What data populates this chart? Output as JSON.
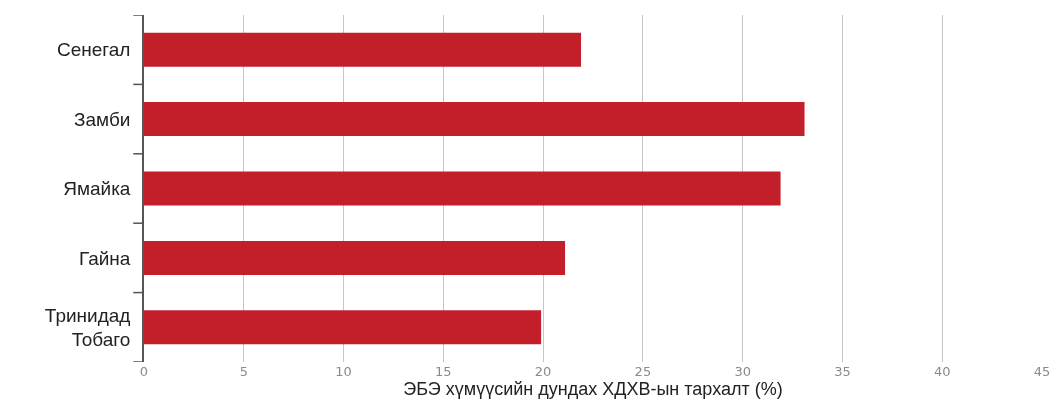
{
  "chart_data": {
    "type": "bar",
    "orientation": "horizontal",
    "categories": [
      "Сенегал",
      "Замби",
      "Ямайка",
      "Гайна",
      "Тринидад\nТобаго"
    ],
    "values": [
      21.9,
      33.1,
      31.9,
      21.1,
      19.9
    ],
    "color": "#c21f2b",
    "xlabel": "ЭБЭ хүмүүсийн дундах ХДХВ-ын тархалт (%)",
    "xlim": [
      0,
      45
    ],
    "xticks": [
      0,
      5,
      10,
      15,
      20,
      25,
      30,
      35,
      40,
      45
    ],
    "grid": "x",
    "legend": false
  }
}
